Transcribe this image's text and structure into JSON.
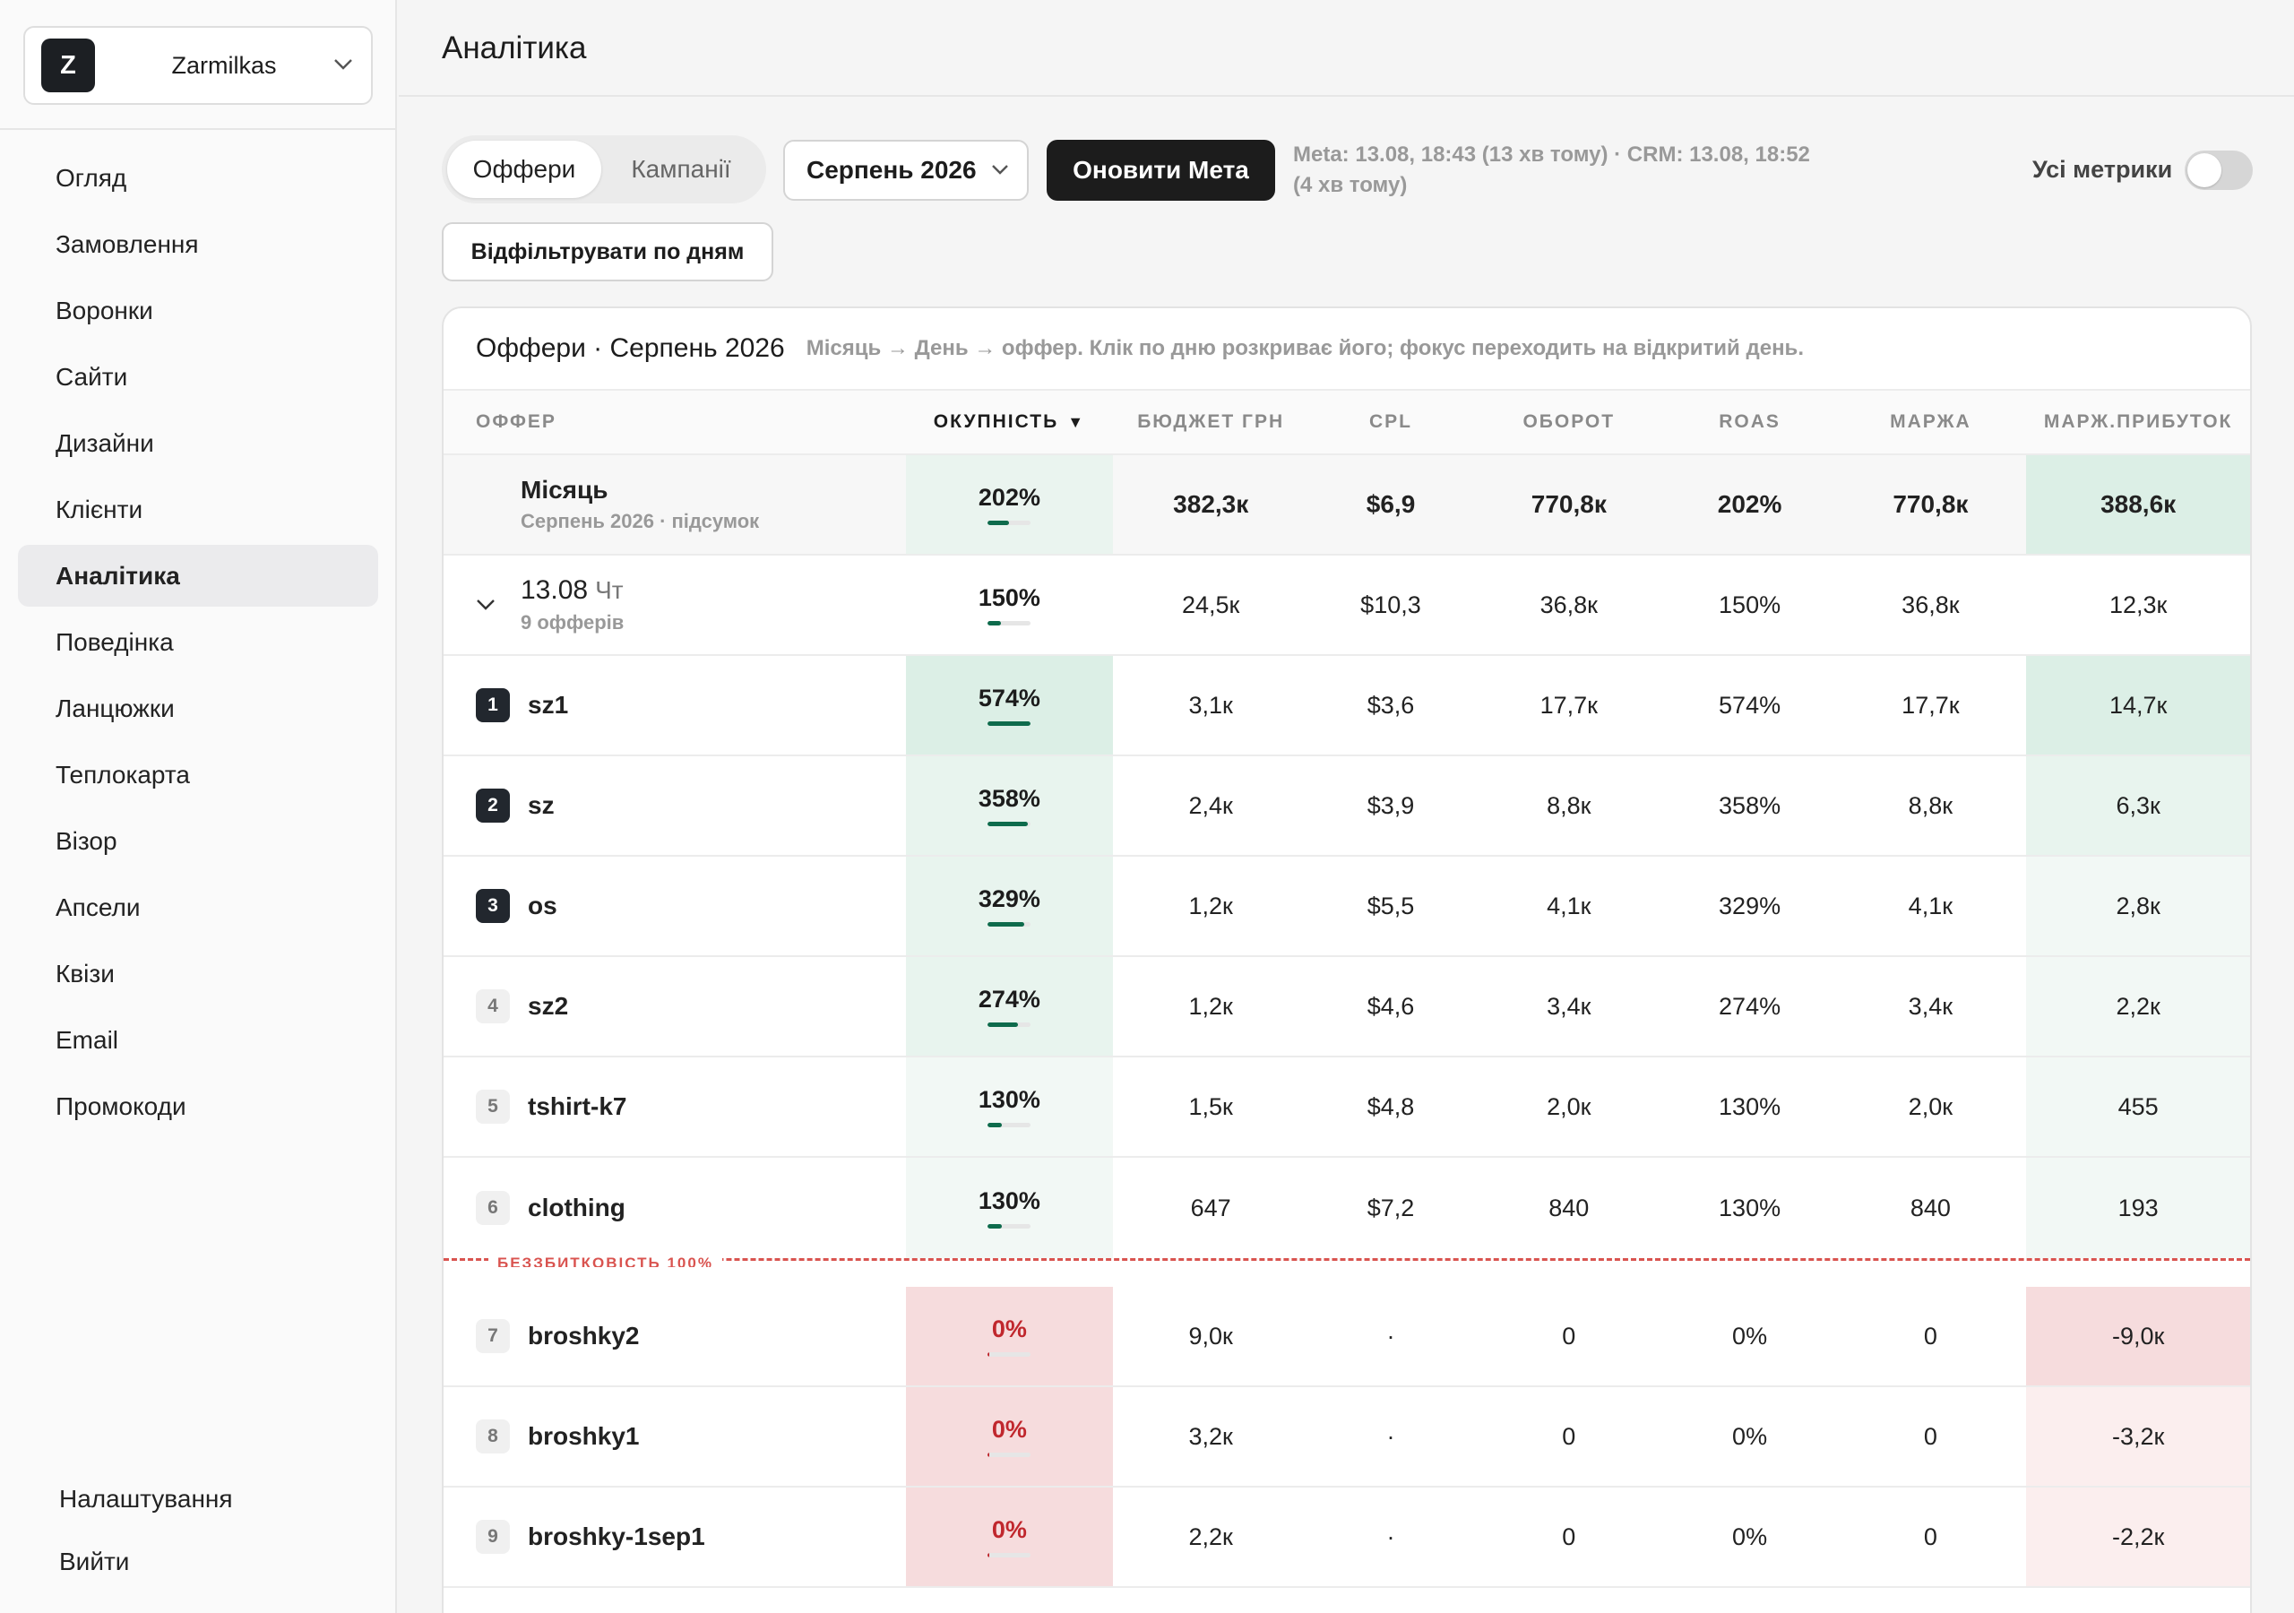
{
  "workspace": {
    "initial": "Z",
    "name": "Zarmilkas"
  },
  "nav": {
    "items": [
      {
        "label": "Огляд",
        "active": false
      },
      {
        "label": "Замовлення",
        "active": false
      },
      {
        "label": "Воронки",
        "active": false
      },
      {
        "label": "Сайти",
        "active": false
      },
      {
        "label": "Дизайни",
        "active": false
      },
      {
        "label": "Клієнти",
        "active": false
      },
      {
        "label": "Аналітика",
        "active": true
      },
      {
        "label": "Поведінка",
        "active": false
      },
      {
        "label": "Ланцюжки",
        "active": false
      },
      {
        "label": "Теплокарта",
        "active": false
      },
      {
        "label": "Візор",
        "active": false
      },
      {
        "label": "Апсели",
        "active": false
      },
      {
        "label": "Квізи",
        "active": false
      },
      {
        "label": "Email",
        "active": false
      },
      {
        "label": "Промокоди",
        "active": false
      }
    ],
    "bottom": [
      {
        "label": "Налаштування"
      },
      {
        "label": "Вийти"
      }
    ]
  },
  "header": {
    "title": "Аналітика"
  },
  "toolbar": {
    "tabs": [
      {
        "label": "Оффери",
        "active": true
      },
      {
        "label": "Кампанії",
        "active": false
      }
    ],
    "month": "Серпень 2026",
    "refresh_label": "Оновити Мета",
    "sync_status": "Meta: 13.08, 18:43 (13 хв тому) · CRM: 13.08, 18:52 (4 хв тому)",
    "all_metrics_label": "Усі метрики",
    "all_metrics_on": false,
    "days_filter_label": "Відфільтрувати по дням"
  },
  "table": {
    "title": "Оффери · Серпень 2026",
    "hint": "Місяць → День → оффер. Клік по дню розкриває його; фокус переходить на відкритий день.",
    "columns": [
      "ОФФЕР",
      "ОКУПНІСТЬ",
      "БЮДЖЕТ ГРН",
      "CPL",
      "ОБОРОТ",
      "ROAS",
      "МАРЖА",
      "МАРЖ.ПРИБУТОК"
    ],
    "sort_indicator": "▼",
    "summary": {
      "title": "Місяць",
      "subtitle": "Серпень 2026 · підсумок",
      "payback": "202%",
      "payback_fraction": 0.5,
      "budget": "382,3к",
      "cpl": "$6,9",
      "turnover": "770,8к",
      "roas": "202%",
      "margin": "770,8к",
      "profit": "388,6к"
    },
    "day": {
      "date": "13.08",
      "weekday": "Чт",
      "count_label": "9 офферів",
      "payback": "150%",
      "payback_fraction": 0.3,
      "budget": "24,5к",
      "cpl": "$10,3",
      "turnover": "36,8к",
      "roas": "150%",
      "margin": "36,8к",
      "profit": "12,3к"
    },
    "breakeven_label": "БЕЗЗБИТКОВІСТЬ 100%",
    "offers": [
      {
        "rank": "1",
        "name": "sz1",
        "payback": "574%",
        "payback_fraction": 1.0,
        "budget": "3,1к",
        "cpl": "$3,6",
        "turnover": "17,7к",
        "roas": "574%",
        "margin": "17,7к",
        "profit": "14,7к"
      },
      {
        "rank": "2",
        "name": "sz",
        "payback": "358%",
        "payback_fraction": 0.92,
        "budget": "2,4к",
        "cpl": "$3,9",
        "turnover": "8,8к",
        "roas": "358%",
        "margin": "8,8к",
        "profit": "6,3к"
      },
      {
        "rank": "3",
        "name": "os",
        "payback": "329%",
        "payback_fraction": 0.85,
        "budget": "1,2к",
        "cpl": "$5,5",
        "turnover": "4,1к",
        "roas": "329%",
        "margin": "4,1к",
        "profit": "2,8к"
      },
      {
        "rank": "4",
        "name": "sz2",
        "payback": "274%",
        "payback_fraction": 0.7,
        "budget": "1,2к",
        "cpl": "$4,6",
        "turnover": "3,4к",
        "roas": "274%",
        "margin": "3,4к",
        "profit": "2,2к"
      },
      {
        "rank": "5",
        "name": "tshirt-k7",
        "payback": "130%",
        "payback_fraction": 0.33,
        "budget": "1,5к",
        "cpl": "$4,8",
        "turnover": "2,0к",
        "roas": "130%",
        "margin": "2,0к",
        "profit": "455"
      },
      {
        "rank": "6",
        "name": "clothing",
        "payback": "130%",
        "payback_fraction": 0.33,
        "budget": "647",
        "cpl": "$7,2",
        "turnover": "840",
        "roas": "130%",
        "margin": "840",
        "profit": "193"
      },
      {
        "rank": "7",
        "name": "broshky2",
        "payback": "0%",
        "payback_fraction": 0.04,
        "budget": "9,0к",
        "cpl": "·",
        "turnover": "0",
        "roas": "0%",
        "margin": "0",
        "profit": "-9,0к"
      },
      {
        "rank": "8",
        "name": "broshky1",
        "payback": "0%",
        "payback_fraction": 0.04,
        "budget": "3,2к",
        "cpl": "·",
        "turnover": "0",
        "roas": "0%",
        "margin": "0",
        "profit": "-3,2к"
      },
      {
        "rank": "9",
        "name": "broshky-1sep1",
        "payback": "0%",
        "payback_fraction": 0.04,
        "budget": "2,2к",
        "cpl": "·",
        "turnover": "0",
        "roas": "0%",
        "margin": "0",
        "profit": "-2,2к"
      }
    ]
  },
  "colors": {
    "positive_strong": "#dcefe6",
    "positive_medium": "#e8f4ee",
    "positive_light": "#f2f8f5",
    "negative_strong": "#f6dcdd",
    "negative_light": "#fbeeee",
    "accent_dark": "#1c1c1c",
    "bar_green": "#0e6b4c",
    "bar_red": "#c0272d"
  }
}
